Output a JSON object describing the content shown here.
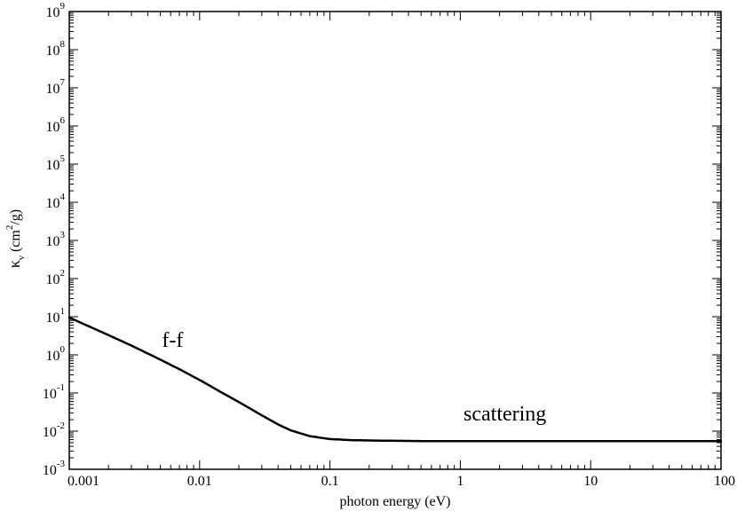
{
  "chart_data": {
    "type": "line",
    "xlabel": "photon energy (eV)",
    "ylabel": {
      "kappa": "κ",
      "sub": "ν",
      "pre": " (cm",
      "sup": "2",
      "post": "/g)"
    },
    "x_scale": "log",
    "y_scale": "log",
    "xlim": [
      0.001,
      100
    ],
    "ylim": [
      0.001,
      1000000000
    ],
    "grid": false,
    "x_ticks": [
      {
        "value": 0.001,
        "label": "0.001"
      },
      {
        "value": 0.01,
        "label": "0.01"
      },
      {
        "value": 0.1,
        "label": "0.1"
      },
      {
        "value": 1,
        "label": "1"
      },
      {
        "value": 10,
        "label": "10"
      },
      {
        "value": 100,
        "label": "100"
      }
    ],
    "y_ticks": [
      {
        "value": 0.001,
        "base": "10",
        "exp": "-3"
      },
      {
        "value": 0.01,
        "base": "10",
        "exp": "-2"
      },
      {
        "value": 0.1,
        "base": "10",
        "exp": "-1"
      },
      {
        "value": 1,
        "base": "10",
        "exp": "0"
      },
      {
        "value": 10,
        "base": "10",
        "exp": "1"
      },
      {
        "value": 100,
        "base": "10",
        "exp": "2"
      },
      {
        "value": 1000,
        "base": "10",
        "exp": "3"
      },
      {
        "value": 10000,
        "base": "10",
        "exp": "4"
      },
      {
        "value": 100000,
        "base": "10",
        "exp": "5"
      },
      {
        "value": 1000000,
        "base": "10",
        "exp": "6"
      },
      {
        "value": 10000000,
        "base": "10",
        "exp": "7"
      },
      {
        "value": 100000000,
        "base": "10",
        "exp": "8"
      },
      {
        "value": 1000000000,
        "base": "10",
        "exp": "9"
      }
    ],
    "series": [
      {
        "color": "#000000",
        "x": [
          0.001,
          0.002,
          0.003,
          0.005,
          0.007,
          0.01,
          0.015,
          0.02,
          0.03,
          0.04,
          0.05,
          0.07,
          0.1,
          0.15,
          0.2,
          0.3,
          0.5,
          1,
          2,
          5,
          10,
          20,
          50,
          100
        ],
        "y": [
          9.5,
          3.3,
          1.75,
          0.75,
          0.42,
          0.22,
          0.1,
          0.058,
          0.026,
          0.015,
          0.0105,
          0.0074,
          0.0062,
          0.0058,
          0.0057,
          0.0056,
          0.0055,
          0.0055,
          0.0055,
          0.0055,
          0.0055,
          0.0055,
          0.0055,
          0.0055
        ]
      }
    ],
    "annotations": [
      {
        "text": "f-f",
        "x": 0.0062,
        "y": 1.6
      },
      {
        "text": "scattering",
        "x": 2.2,
        "y": 0.019
      }
    ]
  }
}
